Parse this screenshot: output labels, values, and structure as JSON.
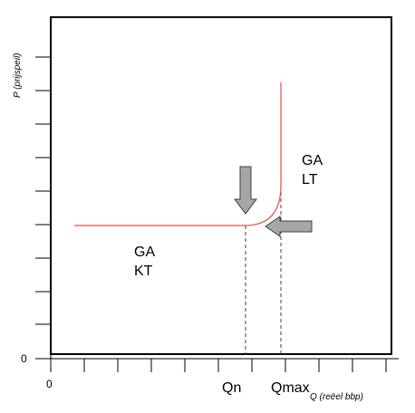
{
  "diagram": {
    "axes": {
      "y_label": "P (prijspeil)",
      "x_label": "Q (reëel bbp)",
      "x_origin_label": "0",
      "y_origin_label": "0",
      "x_ticks_count": 10,
      "y_ticks_count": 10
    },
    "labels": {
      "ga_kt_line1": "GA",
      "ga_kt_line2": "KT",
      "ga_lt_line1": "GA",
      "ga_lt_line2": "LT",
      "qn": "Qn",
      "qmax": "Qmax"
    },
    "colors": {
      "curve": "#e0504a",
      "arrow_fill": "#a6a6a6",
      "arrow_stroke": "#404040",
      "axis": "#000000",
      "dashed": "#404040"
    }
  }
}
